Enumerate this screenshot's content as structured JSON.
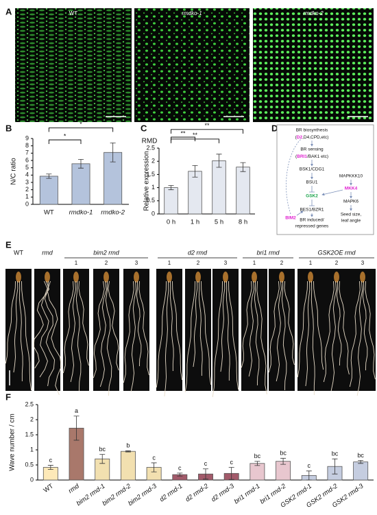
{
  "panel_labels": [
    "A",
    "B",
    "C",
    "D",
    "E",
    "F"
  ],
  "panel_a": {
    "images": [
      "WT",
      "rmdko-1",
      "rmdko-2"
    ]
  },
  "chart_data": [
    {
      "type": "bar",
      "y_label": "N/C ratio",
      "categories": [
        "WT",
        "rmdko-1",
        "rmdko-2"
      ],
      "values": [
        3.85,
        5.55,
        7.1
      ],
      "errors": [
        0.3,
        0.6,
        1.3
      ],
      "color": "#b4c3dc",
      "ylim": [
        0,
        9
      ],
      "yticks": [
        0,
        1,
        2,
        3,
        4,
        5,
        6,
        7,
        8,
        9
      ],
      "significance": [
        {
          "categories": [
            "WT",
            "rmdko-1"
          ],
          "label": "*"
        },
        {
          "categories": [
            "WT",
            "rmdko-2"
          ],
          "label": "*"
        }
      ]
    },
    {
      "type": "bar",
      "title": "RMD",
      "y_label": "Relative expression",
      "categories": [
        "0 h",
        "1 h",
        "5 h",
        "8 h"
      ],
      "values": [
        1.0,
        1.62,
        2.02,
        1.78
      ],
      "errors": [
        0.08,
        0.22,
        0.25,
        0.17
      ],
      "color": "#e4e8f0",
      "ylim": [
        0,
        2.5
      ],
      "yticks": [
        0,
        0.5,
        1,
        1.5,
        2,
        2.5
      ],
      "significance": [
        {
          "categories": [
            "0 h",
            "1 h"
          ],
          "label": "**"
        },
        {
          "categories": [
            "0 h",
            "5 h"
          ],
          "label": "**"
        },
        {
          "categories": [
            "0 h",
            "8 h"
          ],
          "label": "**"
        }
      ]
    },
    {
      "type": "bar",
      "y_label": "Wave number / cm",
      "categories": [
        "WT",
        "rmd",
        "bim2 rmd-1",
        "bim2 rmd-2",
        "bim2 rmd-3",
        "d2 rmd-1",
        "d2 rmd-2",
        "d2 rmd-3",
        "bri1 rmd-1",
        "bri1 rmd-2",
        "GSK2 rmd-1",
        "GSK2 rmd-2",
        "GSK2 rmd-3"
      ],
      "values": [
        0.42,
        1.72,
        0.7,
        0.95,
        0.42,
        0.18,
        0.2,
        0.22,
        0.55,
        0.62,
        0.15,
        0.45,
        0.6
      ],
      "errors": [
        0.07,
        0.4,
        0.15,
        0.02,
        0.15,
        0.05,
        0.17,
        0.2,
        0.07,
        0.1,
        0.15,
        0.25,
        0.05
      ],
      "group_labels": [
        "c",
        "a",
        "bc",
        "b",
        "c",
        "c",
        "c",
        "c",
        "bc",
        "bc",
        "c",
        "bc",
        "bc"
      ],
      "colors": [
        "#fde9b8",
        "#a9786b",
        "#f2e0b0",
        "#f2e0b0",
        "#f2e0b0",
        "#a25a6a",
        "#a25a6a",
        "#a25a6a",
        "#e8c7cf",
        "#e8c7cf",
        "#c5cde0",
        "#c5cde0",
        "#c5cde0"
      ],
      "ylim": [
        0,
        2.5
      ],
      "yticks": [
        0,
        0.5,
        1,
        1.5,
        2,
        2.5
      ]
    }
  ],
  "panel_d": {
    "texts": [
      "BR biosynthesis",
      "(",
      "D2",
      ",D4,CPD,etc)",
      "BR sensing",
      "(",
      "BRI1",
      "/BAK1 etc)",
      "BSK1/CDG1",
      "BSU1",
      "GSK2",
      "BES1/BZR1",
      "BR induced/",
      "repressed genes",
      "MAPKKK10",
      "MKK4",
      "MAPK6",
      "Seed size,",
      "leaf angle",
      "BIM2"
    ]
  },
  "panel_e": {
    "genotypes": [
      {
        "label": "WT"
      },
      {
        "label": "rmd"
      },
      {
        "label": "bim2 rmd",
        "lines": [
          "1",
          "2",
          "3"
        ]
      },
      {
        "label": "d2 rmd",
        "lines": [
          "1",
          "2",
          "3"
        ]
      },
      {
        "label": "bri1 rmd",
        "lines": [
          "1",
          "2"
        ]
      },
      {
        "label": "GSK2OE rmd",
        "lines": [
          "1",
          "2",
          "3"
        ]
      }
    ]
  }
}
